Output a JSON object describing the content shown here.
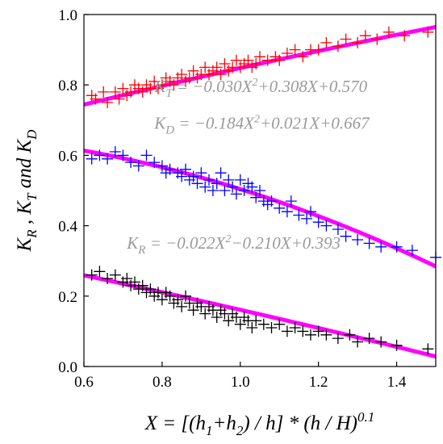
{
  "chart_data": {
    "type": "scatter",
    "title": "",
    "xlim": [
      0.6,
      1.5
    ],
    "ylim": [
      0.0,
      1.0
    ],
    "x_ticks": [
      "0.6",
      "0.8",
      "1.0",
      "1.2",
      "1.4"
    ],
    "y_ticks": [
      "0.0",
      "0.2",
      "0.4",
      "0.6",
      "0.8",
      "1.0"
    ],
    "x_tick_values": [
      0.6,
      0.8,
      1.0,
      1.2,
      1.4
    ],
    "y_tick_values": [
      0.0,
      0.2,
      0.4,
      0.6,
      0.8,
      1.0
    ],
    "xlabel": {
      "parts": [
        {
          "t": "X = [(h",
          "s": "n"
        },
        {
          "t": "1",
          "s": "sub"
        },
        {
          "t": "+h",
          "s": "n"
        },
        {
          "t": "2",
          "s": "sub"
        },
        {
          "t": ") / h] * (h / H)",
          "s": "n"
        },
        {
          "t": "0.1",
          "s": "sup"
        }
      ]
    },
    "ylabel": {
      "parts": [
        {
          "t": "K",
          "s": "n"
        },
        {
          "t": "R",
          "s": "sub"
        },
        {
          "t": " , K",
          "s": "n"
        },
        {
          "t": "T",
          "s": "sub"
        },
        {
          "t": " and K",
          "s": "n"
        },
        {
          "t": "D",
          "s": "sub"
        }
      ]
    },
    "grid": false,
    "series": [
      {
        "key": "KT",
        "color": "#ff0000",
        "points": [
          [
            0.62,
            0.77
          ],
          [
            0.63,
            0.76
          ],
          [
            0.65,
            0.78
          ],
          [
            0.66,
            0.75
          ],
          [
            0.68,
            0.78
          ],
          [
            0.69,
            0.76
          ],
          [
            0.7,
            0.79
          ],
          [
            0.71,
            0.77
          ],
          [
            0.72,
            0.78
          ],
          [
            0.73,
            0.8
          ],
          [
            0.74,
            0.79
          ],
          [
            0.75,
            0.78
          ],
          [
            0.76,
            0.8
          ],
          [
            0.77,
            0.79
          ],
          [
            0.78,
            0.81
          ],
          [
            0.79,
            0.79
          ],
          [
            0.8,
            0.8
          ],
          [
            0.81,
            0.82
          ],
          [
            0.82,
            0.81
          ],
          [
            0.83,
            0.8
          ],
          [
            0.84,
            0.82
          ],
          [
            0.85,
            0.83
          ],
          [
            0.86,
            0.81
          ],
          [
            0.87,
            0.82
          ],
          [
            0.88,
            0.84
          ],
          [
            0.89,
            0.82
          ],
          [
            0.9,
            0.83
          ],
          [
            0.91,
            0.85
          ],
          [
            0.92,
            0.83
          ],
          [
            0.93,
            0.84
          ],
          [
            0.94,
            0.85
          ],
          [
            0.95,
            0.83
          ],
          [
            0.96,
            0.86
          ],
          [
            0.97,
            0.84
          ],
          [
            0.98,
            0.85
          ],
          [
            0.99,
            0.87
          ],
          [
            1.0,
            0.85
          ],
          [
            1.01,
            0.86
          ],
          [
            1.02,
            0.87
          ],
          [
            1.03,
            0.85
          ],
          [
            1.04,
            0.86
          ],
          [
            1.05,
            0.88
          ],
          [
            1.07,
            0.87
          ],
          [
            1.09,
            0.88
          ],
          [
            1.1,
            0.87
          ],
          [
            1.12,
            0.89
          ],
          [
            1.14,
            0.9
          ],
          [
            1.16,
            0.88
          ],
          [
            1.18,
            0.9
          ],
          [
            1.2,
            0.9
          ],
          [
            1.22,
            0.92
          ],
          [
            1.25,
            0.91
          ],
          [
            1.27,
            0.93
          ],
          [
            1.3,
            0.92
          ],
          [
            1.32,
            0.94
          ],
          [
            1.35,
            0.93
          ],
          [
            1.38,
            0.95
          ],
          [
            1.42,
            0.94
          ],
          [
            1.48,
            0.95
          ]
        ]
      },
      {
        "key": "KD",
        "color": "#0000ff",
        "points": [
          [
            0.62,
            0.59
          ],
          [
            0.64,
            0.6
          ],
          [
            0.66,
            0.59
          ],
          [
            0.68,
            0.61
          ],
          [
            0.7,
            0.6
          ],
          [
            0.72,
            0.58
          ],
          [
            0.74,
            0.57
          ],
          [
            0.76,
            0.6
          ],
          [
            0.78,
            0.58
          ],
          [
            0.8,
            0.57
          ],
          [
            0.81,
            0.55
          ],
          [
            0.82,
            0.56
          ],
          [
            0.84,
            0.55
          ],
          [
            0.85,
            0.54
          ],
          [
            0.86,
            0.56
          ],
          [
            0.87,
            0.53
          ],
          [
            0.88,
            0.54
          ],
          [
            0.89,
            0.52
          ],
          [
            0.9,
            0.55
          ],
          [
            0.91,
            0.51
          ],
          [
            0.92,
            0.53
          ],
          [
            0.93,
            0.5
          ],
          [
            0.94,
            0.52
          ],
          [
            0.95,
            0.55
          ],
          [
            0.96,
            0.5
          ],
          [
            0.97,
            0.53
          ],
          [
            0.98,
            0.51
          ],
          [
            0.99,
            0.49
          ],
          [
            1.0,
            0.53
          ],
          [
            1.01,
            0.5
          ],
          [
            1.02,
            0.52
          ],
          [
            1.03,
            0.51
          ],
          [
            1.04,
            0.48
          ],
          [
            1.05,
            0.5
          ],
          [
            1.06,
            0.47
          ],
          [
            1.07,
            0.46
          ],
          [
            1.08,
            0.47
          ],
          [
            1.1,
            0.45
          ],
          [
            1.12,
            0.44
          ],
          [
            1.13,
            0.47
          ],
          [
            1.15,
            0.43
          ],
          [
            1.17,
            0.42
          ],
          [
            1.18,
            0.44
          ],
          [
            1.2,
            0.41
          ],
          [
            1.22,
            0.4
          ],
          [
            1.25,
            0.39
          ],
          [
            1.27,
            0.37
          ],
          [
            1.3,
            0.36
          ],
          [
            1.33,
            0.35
          ],
          [
            1.36,
            0.34
          ],
          [
            1.4,
            0.34
          ],
          [
            1.44,
            0.33
          ],
          [
            1.5,
            0.31
          ]
        ]
      },
      {
        "key": "KR",
        "color": "#000000",
        "points": [
          [
            0.62,
            0.26
          ],
          [
            0.64,
            0.27
          ],
          [
            0.66,
            0.25
          ],
          [
            0.68,
            0.26
          ],
          [
            0.7,
            0.24
          ],
          [
            0.71,
            0.25
          ],
          [
            0.72,
            0.23
          ],
          [
            0.73,
            0.24
          ],
          [
            0.74,
            0.22
          ],
          [
            0.75,
            0.23
          ],
          [
            0.76,
            0.21
          ],
          [
            0.77,
            0.22
          ],
          [
            0.78,
            0.2
          ],
          [
            0.79,
            0.21
          ],
          [
            0.8,
            0.19
          ],
          [
            0.81,
            0.21
          ],
          [
            0.82,
            0.2
          ],
          [
            0.83,
            0.18
          ],
          [
            0.84,
            0.19
          ],
          [
            0.85,
            0.17
          ],
          [
            0.86,
            0.2
          ],
          [
            0.87,
            0.18
          ],
          [
            0.88,
            0.16
          ],
          [
            0.89,
            0.18
          ],
          [
            0.9,
            0.17
          ],
          [
            0.91,
            0.15
          ],
          [
            0.92,
            0.17
          ],
          [
            0.93,
            0.16
          ],
          [
            0.94,
            0.14
          ],
          [
            0.95,
            0.16
          ],
          [
            0.96,
            0.15
          ],
          [
            0.97,
            0.13
          ],
          [
            0.98,
            0.15
          ],
          [
            0.99,
            0.14
          ],
          [
            1.0,
            0.12
          ],
          [
            1.01,
            0.14
          ],
          [
            1.02,
            0.13
          ],
          [
            1.03,
            0.11
          ],
          [
            1.04,
            0.13
          ],
          [
            1.06,
            0.12
          ],
          [
            1.08,
            0.11
          ],
          [
            1.1,
            0.12
          ],
          [
            1.12,
            0.1
          ],
          [
            1.14,
            0.11
          ],
          [
            1.16,
            0.1
          ],
          [
            1.18,
            0.09
          ],
          [
            1.2,
            0.1
          ],
          [
            1.22,
            0.09
          ],
          [
            1.25,
            0.08
          ],
          [
            1.28,
            0.09
          ],
          [
            1.3,
            0.07
          ],
          [
            1.33,
            0.08
          ],
          [
            1.36,
            0.07
          ],
          [
            1.4,
            0.06
          ],
          [
            1.48,
            0.05
          ]
        ]
      }
    ],
    "fits": [
      {
        "key": "KT",
        "coef": [
          -0.03,
          0.308,
          0.57
        ],
        "color": "#ff00ff"
      },
      {
        "key": "KD",
        "coef": [
          -0.184,
          0.021,
          0.667
        ],
        "color": "#ff00ff"
      },
      {
        "key": "KR",
        "coef": [
          -0.022,
          -0.21,
          0.393
        ],
        "color": "#ff00ff"
      }
    ],
    "annotations": [
      {
        "key": "eq-kt",
        "letter": "K",
        "sub": "T",
        "pre": " = −0.030X",
        "sup": "2",
        "post": "+0.308X+0.570",
        "at": [
          0.78,
          0.78
        ]
      },
      {
        "key": "eq-kd",
        "letter": "K",
        "sub": "D",
        "pre": " = −0.184X",
        "sup": "2",
        "post": "+0.021X+0.667",
        "at": [
          0.78,
          0.675
        ]
      },
      {
        "key": "eq-kr",
        "letter": "K",
        "sub": "R",
        "pre": " = −0.022X",
        "sup": "2",
        "post": "−0.210X+0.393",
        "at": [
          0.71,
          0.335
        ]
      }
    ]
  }
}
